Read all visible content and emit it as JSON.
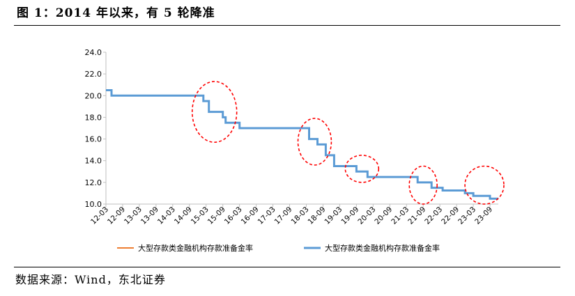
{
  "header": {
    "title": "图 1：2014 年以来，有 5 轮降准"
  },
  "footer": {
    "source": "数据来源：Wind，东北证券"
  },
  "colors": {
    "series_a": "#ED7D31",
    "series_b": "#5B9BD5",
    "highlight": "#FF0000",
    "axis": "#BFBFBF"
  },
  "chart_data": {
    "type": "line",
    "title": "",
    "xlabel": "",
    "ylabel": "",
    "ylim": [
      10.0,
      24.0
    ],
    "yticks": [
      "24.0",
      "22.0",
      "20.0",
      "18.0",
      "16.0",
      "14.0",
      "12.0",
      "10.0"
    ],
    "xticks": [
      "12-03",
      "12-09",
      "13-03",
      "13-09",
      "14-03",
      "14-09",
      "15-03",
      "15-09",
      "16-03",
      "16-09",
      "17-03",
      "17-09",
      "18-03",
      "18-09",
      "19-03",
      "19-09",
      "20-03",
      "20-09",
      "21-03",
      "21-09",
      "22-03",
      "22-09",
      "23-03",
      "23-09"
    ],
    "x_range": [
      "2012-03",
      "2023-12"
    ],
    "grid": false,
    "legend_position": "bottom",
    "series": [
      {
        "name": "大型存款类金融机构存款准备金率",
        "style": "thin",
        "points": [
          [
            "2012-03",
            20.5
          ],
          [
            "2012-05",
            20.0
          ],
          [
            "2015-02",
            19.5
          ],
          [
            "2015-04",
            18.5
          ],
          [
            "2015-09",
            18.0
          ],
          [
            "2015-10",
            17.5
          ],
          [
            "2016-03",
            17.0
          ],
          [
            "2018-04",
            16.0
          ],
          [
            "2018-07",
            15.5
          ],
          [
            "2018-10",
            14.5
          ],
          [
            "2019-01",
            13.5
          ],
          [
            "2019-09",
            13.0
          ],
          [
            "2020-01",
            12.5
          ],
          [
            "2021-07",
            12.0
          ],
          [
            "2021-12",
            11.5
          ],
          [
            "2022-04",
            11.25
          ],
          [
            "2022-12",
            11.0
          ],
          [
            "2023-03",
            10.75
          ],
          [
            "2023-09",
            10.5
          ],
          [
            "2023-12",
            10.5
          ]
        ]
      },
      {
        "name": "大型存款类金融机构存款准备金率",
        "style": "thick",
        "points": [
          [
            "2012-03",
            20.5
          ],
          [
            "2012-05",
            20.0
          ],
          [
            "2015-02",
            19.5
          ],
          [
            "2015-04",
            18.5
          ],
          [
            "2015-09",
            18.0
          ],
          [
            "2015-10",
            17.5
          ],
          [
            "2016-03",
            17.0
          ],
          [
            "2018-04",
            16.0
          ],
          [
            "2018-07",
            15.5
          ],
          [
            "2018-10",
            14.5
          ],
          [
            "2019-01",
            13.5
          ],
          [
            "2019-09",
            13.0
          ],
          [
            "2020-01",
            12.5
          ],
          [
            "2021-07",
            12.0
          ],
          [
            "2021-12",
            11.5
          ],
          [
            "2022-04",
            11.25
          ],
          [
            "2022-12",
            11.0
          ],
          [
            "2023-03",
            10.75
          ],
          [
            "2023-09",
            10.5
          ],
          [
            "2023-12",
            10.5
          ]
        ]
      }
    ],
    "annotations": [
      {
        "type": "dashed-ellipse",
        "x_from": "2014-10",
        "x_to": "2016-02",
        "y_from": 15.7,
        "y_to": 21.3
      },
      {
        "type": "dashed-ellipse",
        "x_from": "2017-12",
        "x_to": "2018-12",
        "y_from": 13.6,
        "y_to": 17.9
      },
      {
        "type": "dashed-ellipse",
        "x_from": "2019-05",
        "x_to": "2020-05",
        "y_from": 12.0,
        "y_to": 14.5
      },
      {
        "type": "dashed-ellipse",
        "x_from": "2021-04",
        "x_to": "2022-02",
        "y_from": 10.0,
        "y_to": 13.5
      },
      {
        "type": "dashed-ellipse",
        "x_from": "2022-12",
        "x_to": "2024-02",
        "y_from": 10.0,
        "y_to": 13.5
      }
    ]
  }
}
